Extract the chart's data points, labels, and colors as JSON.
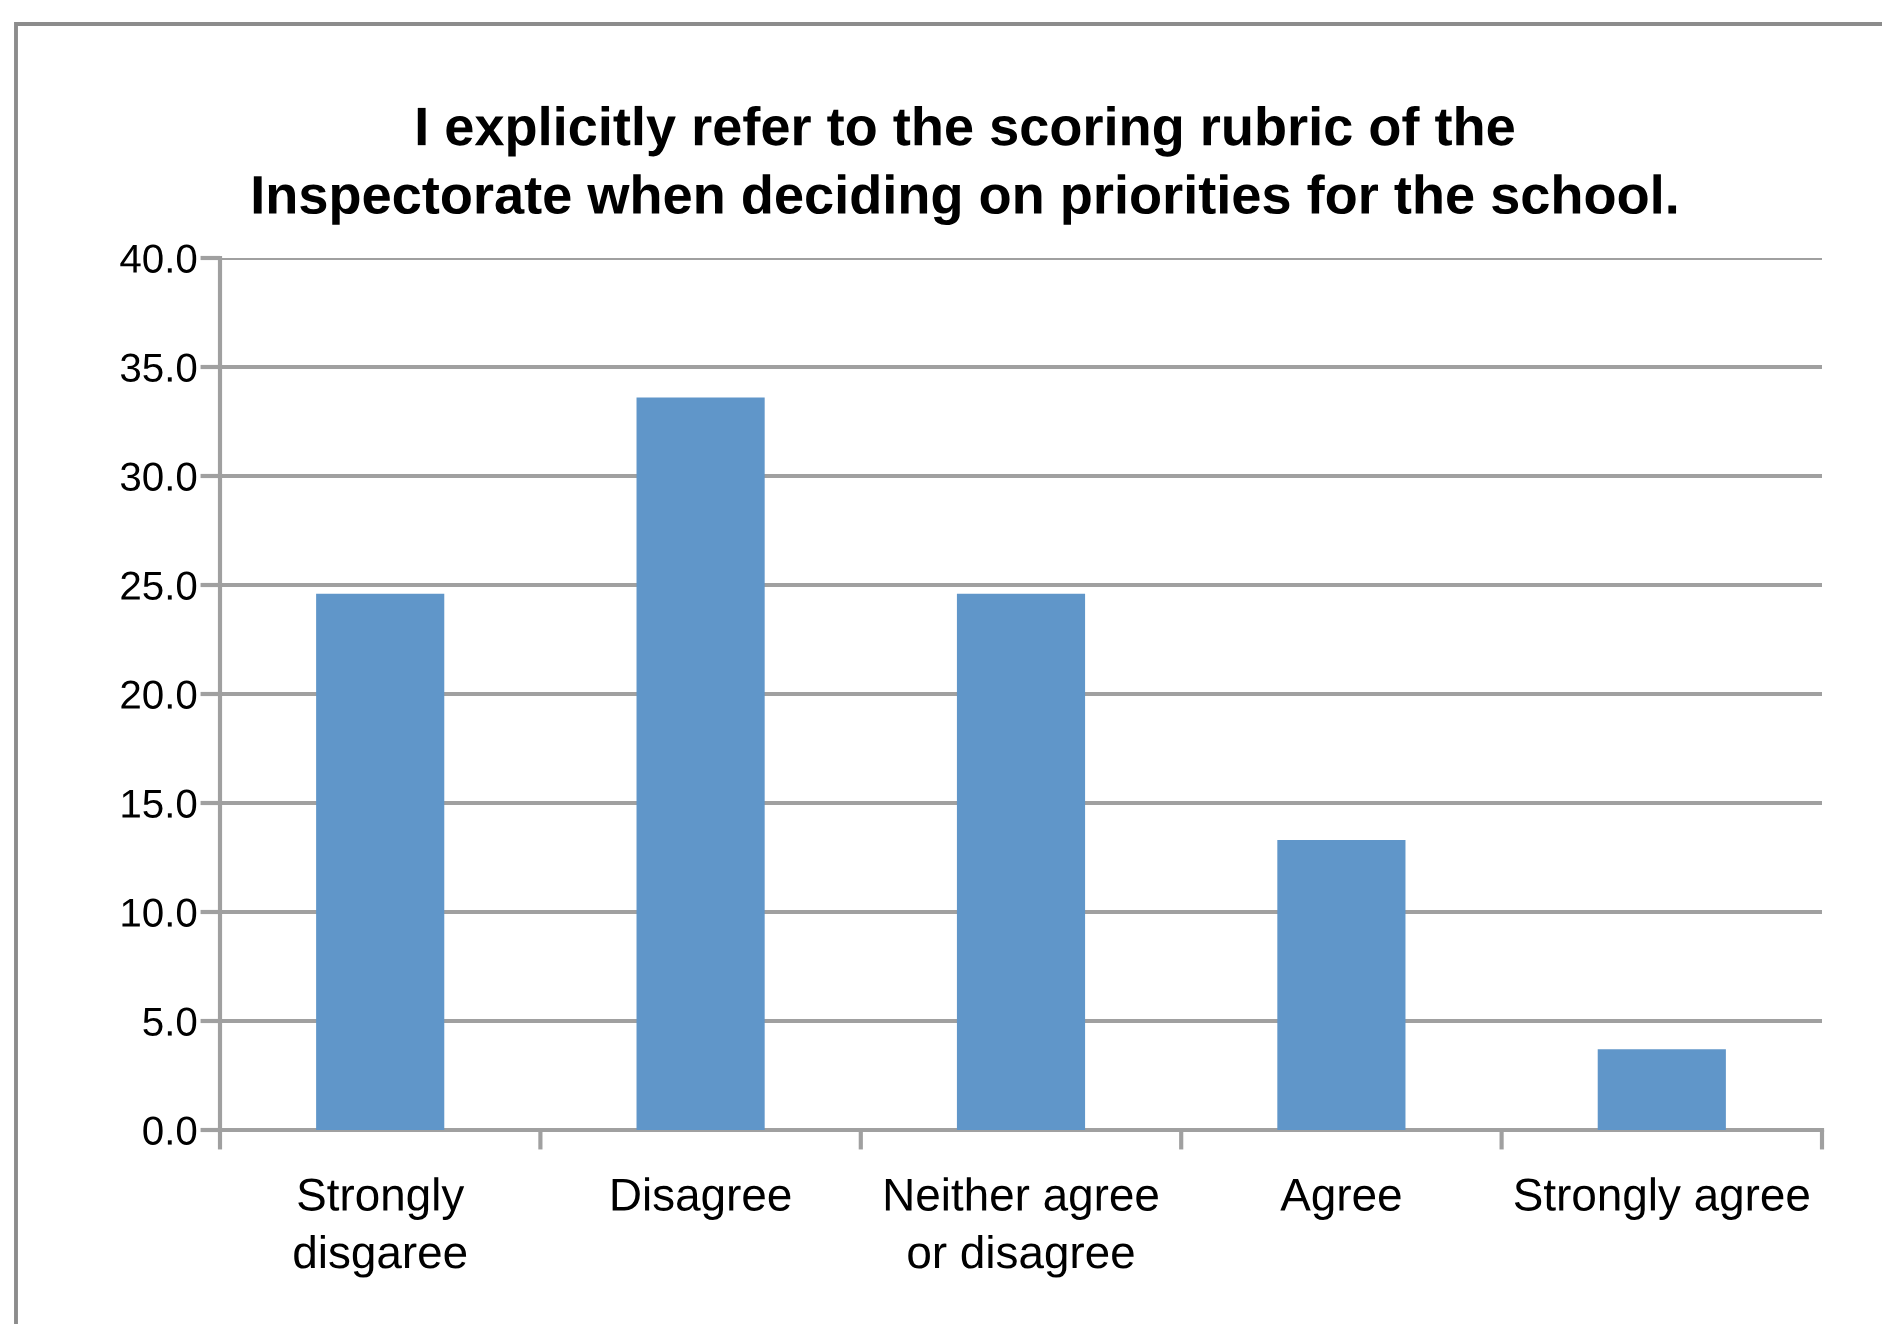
{
  "chart_data": {
    "type": "bar",
    "title": "I explicitly refer to the scoring rubric of the\nInspectorate when deciding on priorities for the school.",
    "categories": [
      "Strongly\ndisgaree",
      "Disagree",
      "Neither agree\nor disagree",
      "Agree",
      "Strongly agree"
    ],
    "values": [
      24.6,
      33.6,
      24.6,
      13.3,
      3.7
    ],
    "color": "#6096c9",
    "ylim": [
      0,
      40
    ],
    "yticks": [
      {
        "value": 0,
        "label": "0.0"
      },
      {
        "value": 5,
        "label": "5.0"
      },
      {
        "value": 10,
        "label": "10.0"
      },
      {
        "value": 15,
        "label": "15.0"
      },
      {
        "value": 20,
        "label": "20.0"
      },
      {
        "value": 25,
        "label": "25.0"
      },
      {
        "value": 30,
        "label": "30.0"
      },
      {
        "value": 35,
        "label": "35.0"
      },
      {
        "value": 40,
        "label": "40.0"
      }
    ],
    "grid": "y"
  }
}
